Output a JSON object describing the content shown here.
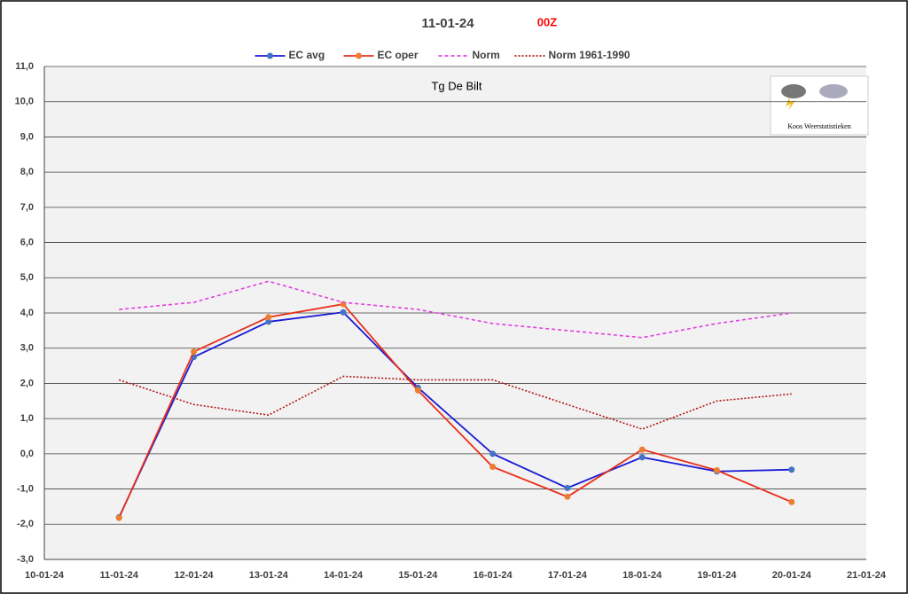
{
  "chart_data": {
    "type": "line",
    "title": "11-01-24",
    "run": "00Z",
    "subtitle": "Tg De Bilt",
    "logo_text": "Koos Weerstatistieken",
    "categories": [
      "10-01-24",
      "11-01-24",
      "12-01-24",
      "13-01-24",
      "14-01-24",
      "15-01-24",
      "16-01-24",
      "17-01-24",
      "18-01-24",
      "19-01-24",
      "20-01-24",
      "21-01-24"
    ],
    "series": [
      {
        "name": "EC avg",
        "color": "#1a1ad6",
        "marker_color": "#4472c4",
        "dash": "solid",
        "values": [
          null,
          -1.8,
          2.75,
          3.75,
          4.02,
          1.88,
          0.0,
          -0.97,
          -0.1,
          -0.5,
          -0.45,
          null
        ]
      },
      {
        "name": "EC oper",
        "color": "#e8301c",
        "marker_color": "#ed7d31",
        "dash": "solid",
        "values": [
          null,
          -1.82,
          2.9,
          3.88,
          4.25,
          1.8,
          -0.37,
          -1.22,
          0.12,
          -0.47,
          -1.37,
          null
        ]
      },
      {
        "name": "Norm",
        "color": "#e040e0",
        "dash": "dashed",
        "values": [
          null,
          4.1,
          4.3,
          4.9,
          4.3,
          4.1,
          3.7,
          3.5,
          3.3,
          3.7,
          4.0,
          null
        ]
      },
      {
        "name": "Norm 1961-1990",
        "color": "#b01515",
        "dash": "dotted",
        "values": [
          null,
          2.1,
          1.4,
          1.1,
          2.2,
          2.1,
          2.1,
          1.4,
          0.7,
          1.5,
          1.7,
          null
        ]
      }
    ],
    "ylim": [
      -3,
      11
    ],
    "yticks": [
      {
        "value": -3,
        "label": "-3,0"
      },
      {
        "value": -2,
        "label": "-2,0"
      },
      {
        "value": -1,
        "label": "-1,0"
      },
      {
        "value": 0,
        "label": "0,0"
      },
      {
        "value": 1,
        "label": "1,0"
      },
      {
        "value": 2,
        "label": "2,0"
      },
      {
        "value": 3,
        "label": "3,0"
      },
      {
        "value": 4,
        "label": "4,0"
      },
      {
        "value": 5,
        "label": "5,0"
      },
      {
        "value": 6,
        "label": "6,0"
      },
      {
        "value": 7,
        "label": "7,0"
      },
      {
        "value": 8,
        "label": "8,0"
      },
      {
        "value": 9,
        "label": "9,0"
      },
      {
        "value": 10,
        "label": "10,0"
      },
      {
        "value": 11,
        "label": "11,0"
      }
    ],
    "grid": true,
    "legend": "top"
  }
}
